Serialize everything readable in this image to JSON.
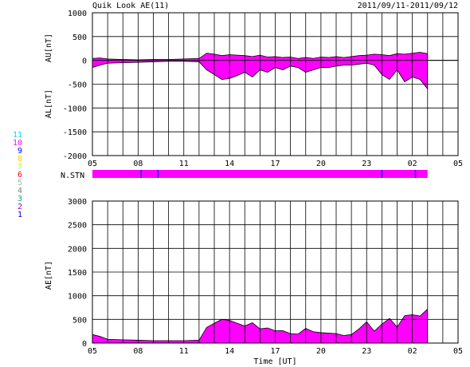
{
  "header": {
    "title": "Quik Look AE(11)",
    "date_range": "2011/09/11-2011/09/12"
  },
  "chart_data": [
    {
      "type": "area",
      "title": "",
      "ylabel_upper": "AU[nT]",
      "ylabel_lower": "AL[nT]",
      "xlabel": "",
      "x_tick_labels": [
        "05",
        "08",
        "11",
        "14",
        "17",
        "20",
        "23",
        "02",
        "05"
      ],
      "xlim": [
        5,
        29
      ],
      "ylim": [
        -2000,
        1000
      ],
      "y_ticks": [
        1000,
        500,
        0,
        -500,
        -1000,
        -1500,
        -2000
      ],
      "grid": true,
      "fill_color": "#ff00ff",
      "data_end_hour": 27.0,
      "series": [
        {
          "name": "AU",
          "x": [
            5.0,
            5.5,
            6.0,
            7.0,
            8.0,
            9.0,
            10.0,
            11.0,
            12.0,
            12.5,
            13.0,
            13.5,
            14.0,
            14.5,
            15.0,
            15.5,
            16.0,
            16.5,
            17.0,
            17.5,
            18.0,
            18.5,
            19.0,
            19.5,
            20.0,
            20.5,
            21.0,
            21.5,
            22.0,
            22.5,
            23.0,
            23.5,
            24.0,
            24.5,
            25.0,
            25.5,
            26.0,
            26.5,
            27.0
          ],
          "values": [
            40,
            50,
            30,
            20,
            10,
            20,
            20,
            30,
            40,
            150,
            130,
            100,
            120,
            110,
            100,
            80,
            110,
            70,
            80,
            60,
            70,
            40,
            60,
            40,
            70,
            60,
            80,
            60,
            80,
            100,
            110,
            130,
            120,
            100,
            140,
            130,
            150,
            170,
            140
          ]
        },
        {
          "name": "AL",
          "x": [
            5.0,
            5.5,
            6.0,
            7.0,
            8.0,
            9.0,
            10.0,
            11.0,
            12.0,
            12.5,
            13.0,
            13.5,
            14.0,
            14.5,
            15.0,
            15.5,
            16.0,
            16.5,
            17.0,
            17.5,
            18.0,
            18.5,
            19.0,
            19.5,
            20.0,
            20.5,
            21.0,
            21.5,
            22.0,
            22.5,
            23.0,
            23.5,
            24.0,
            24.5,
            25.0,
            25.5,
            26.0,
            26.5,
            27.0
          ],
          "values": [
            -150,
            -100,
            -60,
            -50,
            -40,
            -30,
            -20,
            -20,
            -30,
            -200,
            -300,
            -400,
            -380,
            -320,
            -250,
            -350,
            -200,
            -250,
            -150,
            -200,
            -120,
            -150,
            -250,
            -200,
            -150,
            -150,
            -120,
            -100,
            -100,
            -80,
            -60,
            -100,
            -300,
            -400,
            -200,
            -450,
            -350,
            -400,
            -600
          ]
        }
      ]
    },
    {
      "type": "bar",
      "label": "N.STN",
      "bar_color": "#ff00ff",
      "start_hour": 5.0,
      "end_hour": 27.0,
      "markers_hour": [
        8.2,
        9.3,
        24.0,
        26.2
      ],
      "marker_color": "#0000ff"
    },
    {
      "type": "area",
      "title": "",
      "ylabel": "AE[nT]",
      "xlabel": "Time [UT]",
      "x_tick_labels": [
        "05",
        "08",
        "11",
        "14",
        "17",
        "20",
        "23",
        "02",
        "05"
      ],
      "xlim": [
        5,
        29
      ],
      "ylim": [
        0,
        3000
      ],
      "y_ticks": [
        3000,
        2500,
        2000,
        1500,
        1000,
        500,
        0
      ],
      "grid": true,
      "fill_color": "#ff00ff",
      "series": [
        {
          "name": "AE",
          "x": [
            5.0,
            5.5,
            6.0,
            7.0,
            8.0,
            9.0,
            10.0,
            11.0,
            12.0,
            12.5,
            13.0,
            13.5,
            14.0,
            14.5,
            15.0,
            15.5,
            16.0,
            16.5,
            17.0,
            17.5,
            18.0,
            18.5,
            19.0,
            19.5,
            20.0,
            20.5,
            21.0,
            21.5,
            22.0,
            22.5,
            23.0,
            23.5,
            24.0,
            24.5,
            25.0,
            25.5,
            26.0,
            26.5,
            27.0
          ],
          "values": [
            180,
            140,
            80,
            70,
            60,
            50,
            50,
            50,
            60,
            330,
            420,
            500,
            480,
            420,
            360,
            430,
            300,
            320,
            260,
            260,
            200,
            190,
            310,
            240,
            220,
            210,
            200,
            160,
            180,
            300,
            450,
            250,
            400,
            520,
            340,
            580,
            600,
            570,
            720
          ]
        }
      ]
    }
  ],
  "station_legend": [
    {
      "label": "11",
      "color": "#00d8ff"
    },
    {
      "label": "10",
      "color": "#ff00ff"
    },
    {
      "label": "9",
      "color": "#0000ff"
    },
    {
      "label": "8",
      "color": "#ffcc00"
    },
    {
      "label": "7",
      "color": "#c8f000"
    },
    {
      "label": "6",
      "color": "#ff0000"
    },
    {
      "label": "5",
      "color": "#b0b0b0"
    },
    {
      "label": "4",
      "color": "#808080"
    },
    {
      "label": "3",
      "color": "#00aa88"
    },
    {
      "label": "2",
      "color": "#a000c8"
    },
    {
      "label": "1",
      "color": "#0000c0"
    }
  ]
}
